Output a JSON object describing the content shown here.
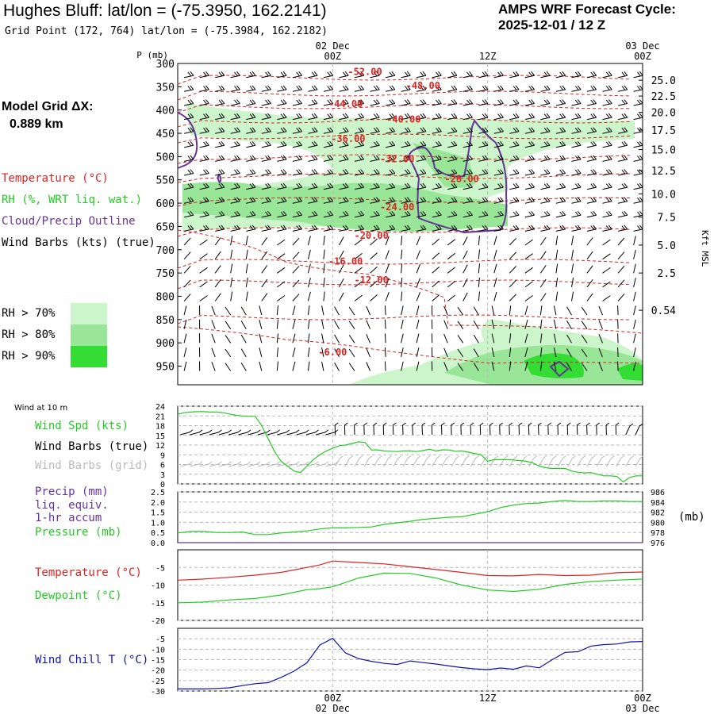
{
  "header": {
    "title": "Hughes Bluff:  lat/lon = (-75.3950, 162.2141)",
    "grid_point": "Grid Point (172, 764) lat/lon = (-75.3984, 162.2182)",
    "cycle_label": "AMPS WRF Forecast Cycle:",
    "cycle_value": "2025-12-01 / 12  Z",
    "model_grid_label": "Model Grid ΔX:",
    "model_grid_value": "0.889 km"
  },
  "legend": {
    "temperature": "Temperature (°C)",
    "rh": "RH (%, WRT liq. wat.)",
    "cloud": "Cloud/Precip Outline",
    "wind_barbs": "Wind Barbs (kts) (true)",
    "rh70": "RH > 70%",
    "rh80": "RH > 80%",
    "rh90": "RH > 90%",
    "rh_colors": [
      "#ccf5cc",
      "#99e699",
      "#33dd33"
    ],
    "wind10m": "Wind at 10 m",
    "wind_spd": "Wind Spd (kts)",
    "barbs_true": "Wind Barbs (true)",
    "barbs_grid": "Wind Barbs (grid)",
    "precip1": "Precip (mm)",
    "precip2": "liq. equiv.",
    "precip3": "1-hr accum",
    "pressure": "Pressure (mb)",
    "temp2": "Temperature (°C)",
    "dewpoint": "Dewpoint (°C)",
    "windchill": "Wind Chill T (°C)",
    "mb_unit": "(mb)"
  },
  "colors": {
    "temp": "#dd2222",
    "green": "#22cc22",
    "purple": "#663399",
    "blue": "#1111aa",
    "grey": "#bbbbbb"
  },
  "chart_data": {
    "type": "line",
    "time_axis": {
      "top_ticks": [
        {
          "label": "00Z",
          "date": "02 Dec",
          "hour": 12
        },
        {
          "label": "12Z",
          "date": "",
          "hour": 24
        },
        {
          "label": "00Z",
          "date": "03 Dec",
          "hour": 36
        }
      ],
      "p_label": "P (mb)",
      "range_hours": [
        0,
        36
      ]
    },
    "cross_section": {
      "pressure_ticks": [
        "300",
        "350",
        "400",
        "450",
        "500",
        "550",
        "600",
        "650",
        "700",
        "750",
        "800",
        "850",
        "900",
        "950"
      ],
      "pressure_range": [
        300,
        990
      ],
      "height_ticks": [
        {
          "label": "25.0",
          "p": 336
        },
        {
          "label": "22.5",
          "p": 370
        },
        {
          "label": "20.0",
          "p": 405
        },
        {
          "label": "17.5",
          "p": 443
        },
        {
          "label": "15.0",
          "p": 485
        },
        {
          "label": "12.5",
          "p": 530
        },
        {
          "label": "10.0",
          "p": 580
        },
        {
          "label": "7.5",
          "p": 630
        },
        {
          "label": "5.0",
          "p": 690
        },
        {
          "label": "2.5",
          "p": 750
        },
        {
          "label": "0.54",
          "p": 830
        }
      ],
      "height_axis_label": "Kft MSL",
      "temp_labels": [
        {
          "text": "-52.00",
          "hour": 14.5,
          "p": 318
        },
        {
          "text": "-48.00",
          "hour": 19,
          "p": 348
        },
        {
          "text": "-44.00",
          "hour": 13,
          "p": 387
        },
        {
          "text": "-40.00",
          "hour": 17.5,
          "p": 420
        },
        {
          "text": "-36.00",
          "hour": 13.2,
          "p": 462
        },
        {
          "text": "-32.00",
          "hour": 17,
          "p": 505
        },
        {
          "text": "-28.00",
          "hour": 22,
          "p": 548
        },
        {
          "text": "-24.00",
          "hour": 17,
          "p": 608
        },
        {
          "text": "-20.00",
          "hour": 15,
          "p": 670
        },
        {
          "text": "-16.00",
          "hour": 13,
          "p": 725
        },
        {
          "text": "-12.00",
          "hour": 15,
          "p": 765
        },
        {
          "text": "-6.00",
          "hour": 12,
          "p": 920
        }
      ]
    },
    "wind_speed_kts": {
      "yticks": [
        "0",
        "3",
        "6",
        "9",
        "12",
        "15",
        "18",
        "21",
        "24"
      ],
      "ylim": [
        0,
        24
      ],
      "x": [
        0,
        0.5,
        1,
        1.5,
        2,
        2.5,
        3,
        3.5,
        4,
        4.5,
        5,
        5.5,
        6,
        6.5,
        7,
        7.5,
        8,
        8.5,
        9,
        9.5,
        10,
        10.5,
        11,
        11.5,
        12,
        12.5,
        13,
        13.5,
        14,
        14.5,
        15,
        15.5,
        16,
        16.5,
        17,
        17.5,
        18,
        18.5,
        19,
        19.5,
        20,
        20.5,
        21,
        21.5,
        22,
        22.5,
        23,
        23.5,
        24,
        24.5,
        25,
        25.5,
        26,
        26.5,
        27,
        27.5,
        28,
        28.5,
        29,
        29.5,
        30,
        30.5,
        31,
        31.5,
        32,
        32.5,
        33,
        33.5,
        34,
        34.5,
        35,
        35.5,
        36
      ],
      "values": [
        21.5,
        22,
        22.2,
        22.3,
        22.3,
        22.2,
        22.2,
        22,
        21.6,
        21.2,
        21,
        20.9,
        20.9,
        18,
        14,
        10,
        7,
        5.5,
        4,
        3.5,
        5.5,
        7.5,
        9,
        10.2,
        11,
        11.8,
        12,
        12.5,
        13,
        12.8,
        10.5,
        10.5,
        10.2,
        10.1,
        10,
        10.2,
        10.2,
        10,
        10.3,
        10.7,
        10.2,
        10.5,
        10.5,
        10.1,
        10.2,
        9.8,
        9.4,
        9,
        7,
        7.5,
        7.5,
        7.5,
        7.4,
        7.2,
        7,
        6.5,
        5.5,
        5,
        4.8,
        4.8,
        4.8,
        4,
        3.6,
        3.4,
        3.5,
        3,
        2.5,
        2.5,
        2.3,
        0.6,
        2,
        2.5,
        2.5
      ]
    },
    "pressure_precip": {
      "left_yticks": [
        "0.0",
        "0.5",
        "1.0",
        "1.5",
        "2.0",
        "2.5"
      ],
      "left_ylim": [
        0,
        2.5
      ],
      "right_yticks": [
        "976",
        "978",
        "980",
        "982",
        "984",
        "986"
      ],
      "right_ylim": [
        976,
        986
      ],
      "x": [
        0,
        1,
        2,
        3,
        4,
        5,
        6,
        7,
        8,
        9,
        10,
        11,
        12,
        13,
        14,
        15,
        16,
        17,
        18,
        19,
        20,
        21,
        22,
        23,
        24,
        25,
        26,
        27,
        28,
        29,
        30,
        31,
        32,
        33,
        34,
        35,
        36
      ],
      "pressure": [
        977.9,
        978.2,
        978.2,
        978.0,
        978.0,
        978.1,
        977.6,
        977.6,
        977.9,
        978.1,
        978.3,
        978.7,
        978.9,
        978.9,
        979.0,
        979.1,
        979.6,
        979.9,
        980.2,
        980.6,
        980.8,
        981.0,
        981.1,
        981.6,
        982.1,
        982.9,
        983.4,
        983.7,
        983.8,
        984.1,
        984.3,
        984.1,
        984.1,
        984.2,
        984.2,
        984.1,
        984.1
      ],
      "precip": [
        0,
        0,
        0,
        0,
        0,
        0,
        0,
        0,
        0,
        0,
        0,
        0,
        0,
        0,
        0,
        0,
        0,
        0,
        0,
        0,
        0,
        0,
        0,
        0,
        0,
        0,
        0,
        0,
        0,
        0,
        0,
        0,
        0,
        0,
        0,
        0,
        0
      ]
    },
    "temp_dewpoint": {
      "yticks": [
        "-20",
        "-15",
        "-10",
        "-5"
      ],
      "ylim": [
        -20,
        0
      ],
      "x": [
        0,
        2,
        4,
        6,
        8,
        10,
        11,
        12,
        14,
        16,
        18,
        20,
        22,
        24,
        26,
        28,
        30,
        32,
        34,
        36
      ],
      "temperature": [
        -8.6,
        -8.3,
        -7.8,
        -7.2,
        -6.4,
        -5.0,
        -4.3,
        -3.2,
        -3.6,
        -4.0,
        -4.8,
        -5.6,
        -6.4,
        -7.3,
        -7.4,
        -7.0,
        -7.3,
        -7.2,
        -6.5,
        -6.3
      ],
      "dewpoint": [
        -15.0,
        -14.8,
        -14.2,
        -13.8,
        -12.8,
        -11.3,
        -11.0,
        -10.5,
        -8.0,
        -6.6,
        -6.7,
        -8.0,
        -10.0,
        -11.4,
        -11.8,
        -11.2,
        -9.8,
        -9.0,
        -8.6,
        -8.3
      ]
    },
    "wind_chill": {
      "yticks": [
        "-30",
        "-25",
        "-20",
        "-15",
        "-10",
        "-5"
      ],
      "ylim": [
        -30,
        0
      ],
      "x": [
        0,
        1,
        2,
        3,
        4,
        5,
        6,
        7,
        8,
        9,
        10,
        11,
        12,
        13,
        14,
        15,
        16,
        17,
        18,
        19,
        20,
        21,
        22,
        23,
        24,
        25,
        26,
        27,
        28,
        29,
        30,
        31,
        32,
        33,
        34,
        35,
        36
      ],
      "values": [
        -29,
        -29,
        -29,
        -28.8,
        -28.5,
        -27.4,
        -26.5,
        -26,
        -23.5,
        -20.5,
        -16.5,
        -8,
        -4.8,
        -11.8,
        -14.5,
        -15.8,
        -16.8,
        -17.3,
        -15.6,
        -16.4,
        -17.1,
        -18,
        -18.8,
        -19.4,
        -19.8,
        -19,
        -19.6,
        -18,
        -18.9,
        -15,
        -11.5,
        -11.2,
        -8.5,
        -7.8,
        -7.5,
        -6.5,
        -6.3
      ]
    },
    "bottom_ticks": [
      {
        "label": "00Z",
        "date": "02 Dec"
      },
      {
        "label": "12Z",
        "date": ""
      },
      {
        "label": "00Z",
        "date": "03 Dec"
      }
    ]
  }
}
